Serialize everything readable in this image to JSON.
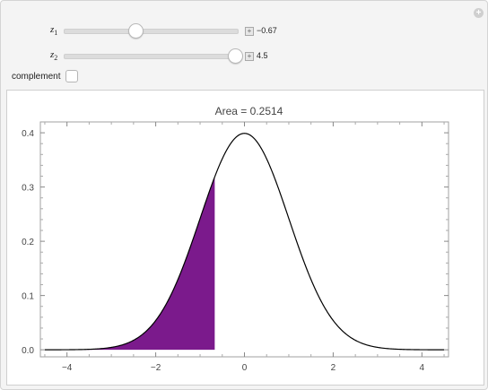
{
  "controls": {
    "z1": {
      "label_main": "z",
      "label_sub": "1",
      "value": "−0.67",
      "slider_fraction": 0.43
    },
    "z2": {
      "label_main": "z",
      "label_sub": "2",
      "value": "4.5",
      "slider_fraction": 1.0
    },
    "complement": {
      "label": "complement",
      "checked": false
    }
  },
  "colors": {
    "shade": "#7b1a8c",
    "curve": "#000000",
    "frame": "#a0a0a0"
  },
  "chart_data": {
    "type": "area",
    "title": "Area = 0.2514",
    "xlabel": "",
    "ylabel": "",
    "xlim": [
      -4.6,
      4.6
    ],
    "ylim": [
      -0.013,
      0.42
    ],
    "x_ticks": [
      -4,
      -2,
      0,
      2,
      4
    ],
    "x_tick_labels": [
      "−4",
      "−2",
      "0",
      "2",
      "4"
    ],
    "y_ticks": [
      0.0,
      0.1,
      0.2,
      0.3,
      0.4
    ],
    "y_tick_labels": [
      "0.0",
      "0.1",
      "0.2",
      "0.3",
      "0.4"
    ],
    "curve": "standard normal density",
    "shade_from": -4.5,
    "shade_to": -0.67,
    "grid": false
  }
}
